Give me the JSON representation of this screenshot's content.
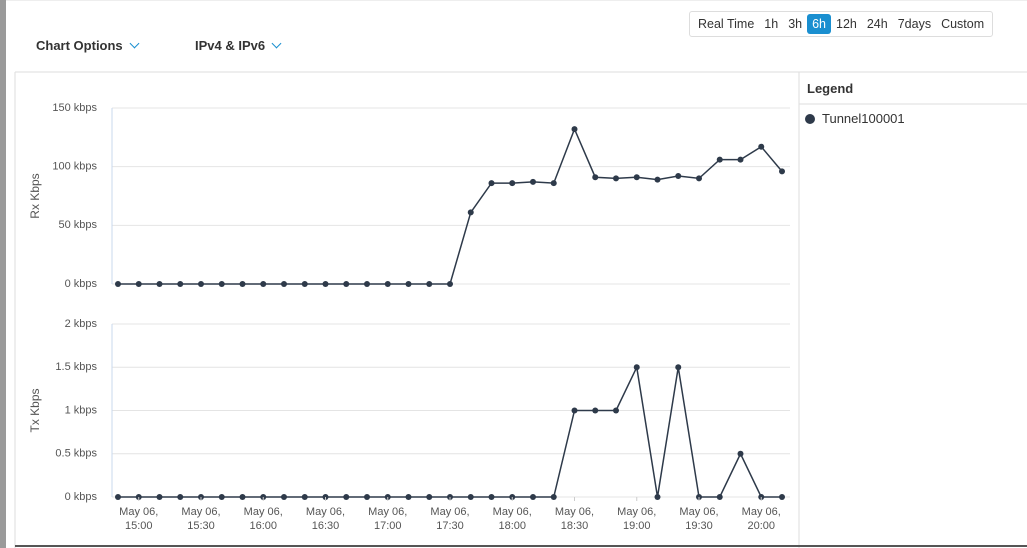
{
  "toolbar": {
    "chart_options": "Chart Options",
    "ip_filter": "IPv4 & IPv6",
    "ranges": [
      "Real Time",
      "1h",
      "3h",
      "6h",
      "12h",
      "24h",
      "7days",
      "Custom"
    ],
    "selected": 3
  },
  "legend": {
    "title": "Legend"
  },
  "chart_data": [
    {
      "type": "line",
      "y_label": "Rx Kbps",
      "ylim": [
        0,
        150
      ],
      "yticks": [
        {
          "value": 0,
          "label": "0 kbps"
        },
        {
          "value": 50,
          "label": "50 kbps"
        },
        {
          "value": 100,
          "label": "100 kbps"
        },
        {
          "value": 150,
          "label": "150 kbps"
        }
      ],
      "grid": true,
      "series": [
        {
          "name": "Tunnel100001",
          "color": "#2e3a4a",
          "values": [
            0,
            0,
            0,
            0,
            0,
            0,
            0,
            0,
            0,
            0,
            0,
            0,
            0,
            0,
            0,
            0,
            0,
            61,
            86,
            86,
            87,
            86,
            132,
            91,
            90,
            91,
            89,
            92,
            90,
            106,
            106,
            117,
            96
          ]
        }
      ]
    },
    {
      "type": "line",
      "y_label": "Tx Kbps",
      "ylim": [
        0,
        2
      ],
      "yticks": [
        {
          "value": 0,
          "label": "0 kbps"
        },
        {
          "value": 0.5,
          "label": "0.5 kbps"
        },
        {
          "value": 1,
          "label": "1 kbps"
        },
        {
          "value": 1.5,
          "label": "1.5 kbps"
        },
        {
          "value": 2,
          "label": "2 kbps"
        }
      ],
      "grid": true,
      "categories": [
        null,
        "May 06, 15:00",
        null,
        null,
        "May 06, 15:30",
        null,
        null,
        "May 06, 16:00",
        null,
        null,
        "May 06, 16:30",
        null,
        null,
        "May 06, 17:00",
        null,
        null,
        "May 06, 17:30",
        null,
        null,
        "May 06, 18:00",
        null,
        null,
        "May 06, 18:30",
        null,
        null,
        "May 06, 19:00",
        null,
        null,
        "May 06, 19:30",
        null,
        null,
        "May 06, 20:00",
        null
      ],
      "series": [
        {
          "color": "#2e3a4a",
          "values": [
            0,
            0,
            0,
            0,
            0,
            0,
            0,
            0,
            0,
            0,
            0,
            0,
            0,
            0,
            0,
            0,
            0,
            0,
            0,
            0,
            0,
            0,
            1,
            1,
            1,
            1.5,
            0,
            1.5,
            0,
            0,
            0.5,
            0,
            0
          ]
        }
      ]
    }
  ]
}
